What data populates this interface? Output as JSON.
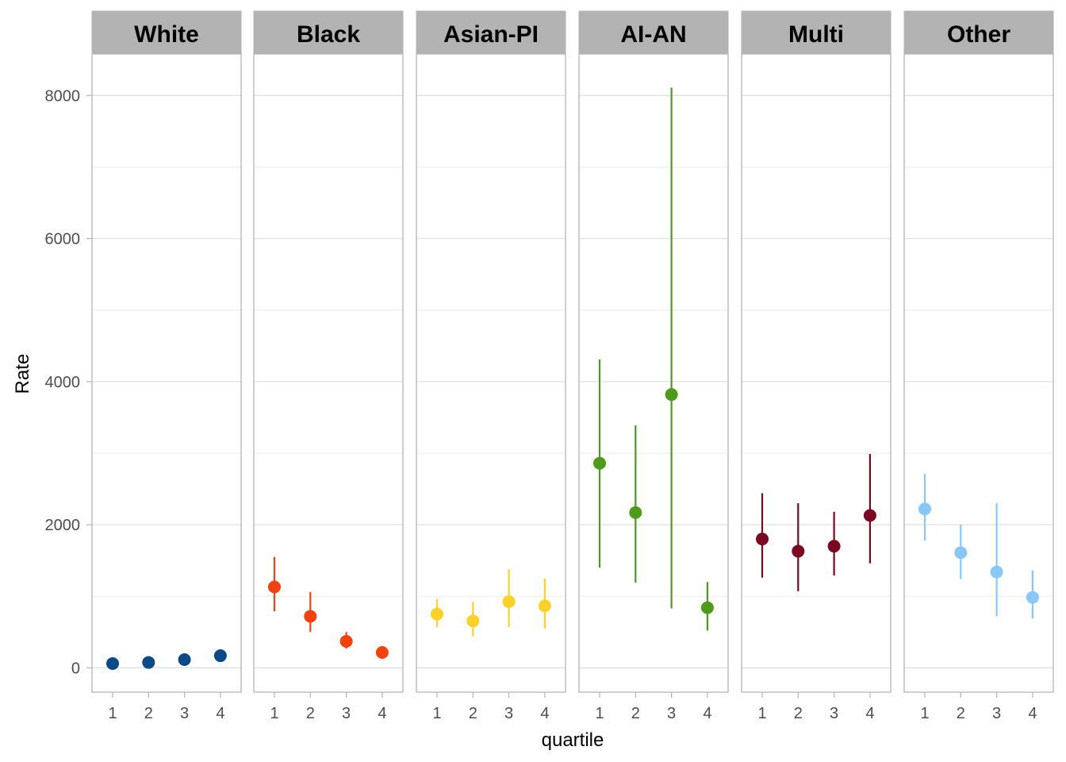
{
  "chart_data": {
    "type": "scatter",
    "facet_by": "race",
    "xlabel": "quartile",
    "ylabel": "Rate",
    "x_ticks": [
      "1",
      "2",
      "3",
      "4"
    ],
    "y_ticks": [
      0,
      2000,
      4000,
      6000,
      8000
    ],
    "ylim": [
      -340,
      8580
    ],
    "grid": true,
    "legend": "none",
    "panels": [
      {
        "label": "White",
        "color": "#0b4a87",
        "points": [
          {
            "x": 1,
            "y": 60,
            "lo": 45,
            "hi": 75
          },
          {
            "x": 2,
            "y": 75,
            "lo": 60,
            "hi": 90
          },
          {
            "x": 3,
            "y": 115,
            "lo": 95,
            "hi": 135
          },
          {
            "x": 4,
            "y": 170,
            "lo": 145,
            "hi": 195
          }
        ]
      },
      {
        "label": "Black",
        "color": "#f4420f",
        "points": [
          {
            "x": 1,
            "y": 1130,
            "lo": 790,
            "hi": 1550
          },
          {
            "x": 2,
            "y": 720,
            "lo": 500,
            "hi": 1060
          },
          {
            "x": 3,
            "y": 370,
            "lo": 270,
            "hi": 500
          },
          {
            "x": 4,
            "y": 215,
            "lo": 160,
            "hi": 280
          }
        ]
      },
      {
        "label": "Asian-PI",
        "color": "#fcd22a",
        "points": [
          {
            "x": 1,
            "y": 750,
            "lo": 570,
            "hi": 960
          },
          {
            "x": 2,
            "y": 655,
            "lo": 440,
            "hi": 920
          },
          {
            "x": 3,
            "y": 925,
            "lo": 570,
            "hi": 1380
          },
          {
            "x": 4,
            "y": 865,
            "lo": 550,
            "hi": 1250
          }
        ]
      },
      {
        "label": "AI-AN",
        "color": "#4e9a1a",
        "points": [
          {
            "x": 1,
            "y": 2860,
            "lo": 1400,
            "hi": 4310
          },
          {
            "x": 2,
            "y": 2170,
            "lo": 1190,
            "hi": 3390
          },
          {
            "x": 3,
            "y": 3820,
            "lo": 830,
            "hi": 8110
          },
          {
            "x": 4,
            "y": 840,
            "lo": 520,
            "hi": 1200
          }
        ]
      },
      {
        "label": "Multi",
        "color": "#7b0722",
        "points": [
          {
            "x": 1,
            "y": 1800,
            "lo": 1260,
            "hi": 2440
          },
          {
            "x": 2,
            "y": 1630,
            "lo": 1070,
            "hi": 2300
          },
          {
            "x": 3,
            "y": 1700,
            "lo": 1290,
            "hi": 2180
          },
          {
            "x": 4,
            "y": 2130,
            "lo": 1460,
            "hi": 2990
          }
        ]
      },
      {
        "label": "Other",
        "color": "#88c8f7",
        "points": [
          {
            "x": 1,
            "y": 2220,
            "lo": 1780,
            "hi": 2710
          },
          {
            "x": 2,
            "y": 1610,
            "lo": 1240,
            "hi": 2000
          },
          {
            "x": 3,
            "y": 1340,
            "lo": 720,
            "hi": 2300
          },
          {
            "x": 4,
            "y": 985,
            "lo": 690,
            "hi": 1360
          }
        ]
      }
    ]
  }
}
